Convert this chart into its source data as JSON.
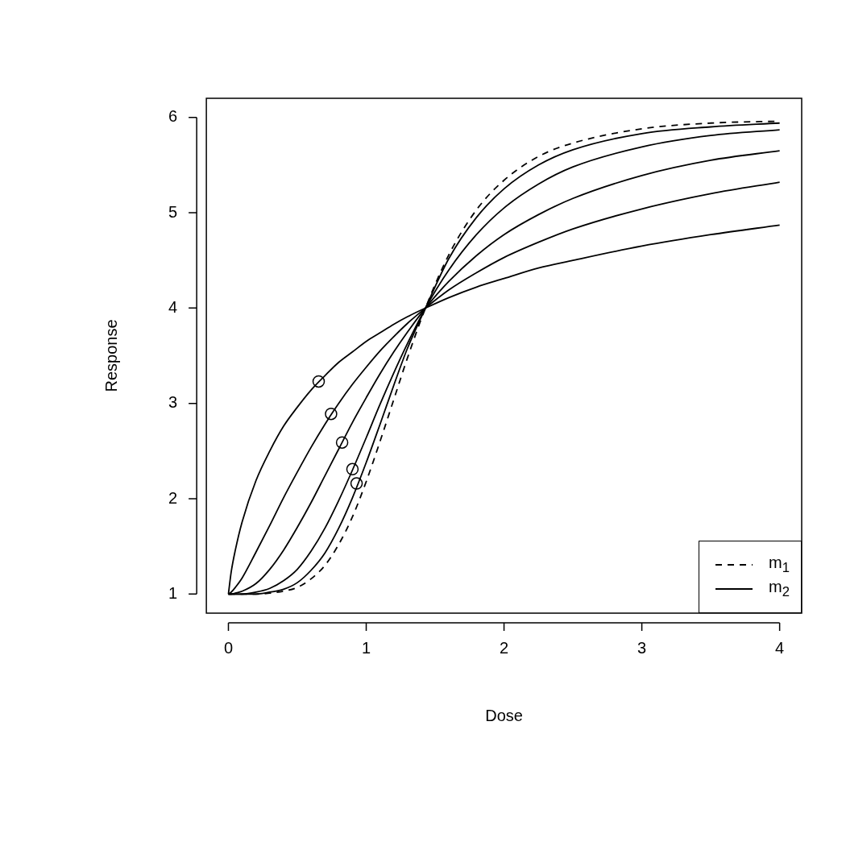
{
  "chart_data": {
    "type": "line",
    "xlabel": "Dose",
    "ylabel": "Response",
    "x": [
      0,
      0.02,
      0.05,
      0.1,
      0.2,
      0.3,
      0.4,
      0.5,
      0.6,
      0.7,
      0.8,
      0.9,
      1.0,
      1.1,
      1.2,
      1.3,
      1.43,
      1.6,
      1.8,
      2.0,
      2.25,
      2.5,
      3.0,
      3.5,
      4.0
    ],
    "series": [
      {
        "name": "m$_{1}$",
        "color": "#000000",
        "line_style": "dashed",
        "values": [
          1,
          1,
          1,
          1,
          1,
          1.01,
          1.03,
          1.07,
          1.16,
          1.3,
          1.52,
          1.81,
          2.18,
          2.6,
          3.04,
          3.48,
          4,
          4.56,
          5.03,
          5.34,
          5.59,
          5.73,
          5.88,
          5.94,
          5.96
        ]
      },
      {
        "name": "m$_{2}$",
        "color": "#000000",
        "line_style": "solid",
        "values": [
          1,
          1,
          1,
          1,
          1,
          1.02,
          1.05,
          1.12,
          1.25,
          1.43,
          1.69,
          2.01,
          2.38,
          2.78,
          3.19,
          3.58,
          4,
          4.52,
          4.95,
          5.25,
          5.5,
          5.66,
          5.83,
          5.9,
          5.94
        ]
      },
      {
        "color": "#000000",
        "line_style": "solid",
        "values": [
          1,
          1,
          1,
          1,
          1.02,
          1.06,
          1.14,
          1.26,
          1.45,
          1.69,
          1.98,
          2.3,
          2.64,
          2.99,
          3.32,
          3.63,
          4,
          4.4,
          4.77,
          5.05,
          5.3,
          5.48,
          5.69,
          5.81,
          5.87
        ]
      },
      {
        "color": "#000000",
        "line_style": "solid",
        "values": [
          1,
          1,
          1.01,
          1.03,
          1.11,
          1.26,
          1.46,
          1.7,
          1.96,
          2.24,
          2.52,
          2.8,
          3.06,
          3.31,
          3.54,
          3.75,
          4,
          4.28,
          4.55,
          4.77,
          4.98,
          5.15,
          5.39,
          5.55,
          5.65
        ]
      },
      {
        "color": "#000000",
        "line_style": "solid",
        "values": [
          1,
          1.02,
          1.07,
          1.17,
          1.44,
          1.72,
          2.01,
          2.28,
          2.54,
          2.78,
          3.0,
          3.2,
          3.38,
          3.55,
          3.7,
          3.84,
          4,
          4.19,
          4.37,
          4.53,
          4.69,
          4.83,
          5.04,
          5.2,
          5.32
        ]
      },
      {
        "color": "#000000",
        "line_style": "solid",
        "values": [
          1,
          1.23,
          1.46,
          1.76,
          2.19,
          2.5,
          2.76,
          2.96,
          3.14,
          3.29,
          3.43,
          3.54,
          3.65,
          3.74,
          3.83,
          3.91,
          4,
          4.11,
          4.22,
          4.31,
          4.42,
          4.5,
          4.65,
          4.77,
          4.87
        ]
      },
      {
        "type": "scatter",
        "color": "#000000",
        "marker": "circle",
        "x": [
          0.655,
          0.745,
          0.825,
          0.9,
          0.93
        ],
        "values": [
          3.23,
          2.89,
          2.59,
          2.31,
          2.16
        ]
      }
    ],
    "marker": "none",
    "xlim": [
      -0.16,
      4.16
    ],
    "xticks": [
      0,
      1,
      2,
      3,
      4
    ],
    "ylim": [
      0.8,
      6.2
    ],
    "yticks": [
      1,
      2,
      3,
      4,
      5,
      6
    ],
    "grid": false,
    "legend": "bottom right"
  }
}
